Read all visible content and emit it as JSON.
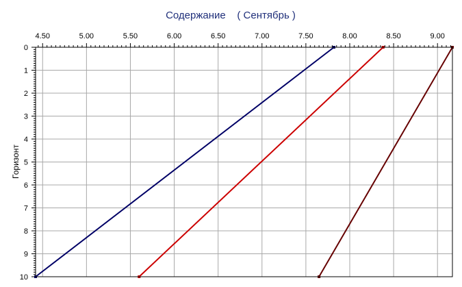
{
  "chart_data": {
    "type": "line",
    "title": "Содержание    ( Сентябрь )",
    "xlabel": "",
    "ylabel": "Горизонт",
    "xlim": [
      4.42,
      9.17
    ],
    "ylim": [
      0,
      10
    ],
    "y_inverted": true,
    "x_axis_position": "top",
    "grid": true,
    "x_ticks": [
      "4.50",
      "5.00",
      "5.50",
      "6.00",
      "6.50",
      "7.00",
      "7.50",
      "8.00",
      "8.50",
      "9.00"
    ],
    "y_ticks": [
      "0",
      "1",
      "2",
      "3",
      "4",
      "5",
      "6",
      "7",
      "8",
      "9",
      "10"
    ],
    "series": [
      {
        "color": "#000066",
        "points": [
          [
            7.82,
            0
          ],
          [
            4.42,
            10
          ]
        ]
      },
      {
        "color": "#cc0000",
        "points": [
          [
            8.38,
            0
          ],
          [
            5.6,
            10
          ]
        ]
      },
      {
        "color": "#660000",
        "points": [
          [
            9.17,
            0
          ],
          [
            7.65,
            10
          ]
        ]
      }
    ]
  }
}
